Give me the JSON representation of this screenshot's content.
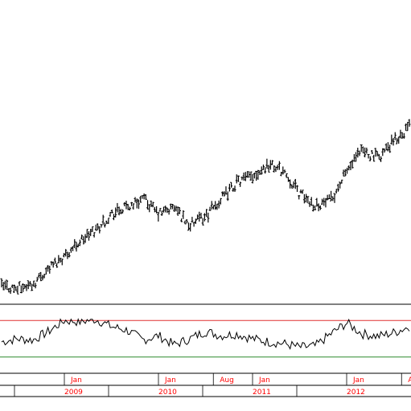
{
  "chart_data": [
    {
      "type": "ohlc",
      "title": "",
      "xlabel": "",
      "ylabel": "",
      "x_start": "2008-05",
      "x_end": "2012-09",
      "points": 230,
      "grid": false,
      "legend": "none",
      "bar_color": "#000000",
      "price_path": [
        {
          "t": "2008-05",
          "v": 8
        },
        {
          "t": "2008-07",
          "v": 6
        },
        {
          "t": "2008-09",
          "v": 10
        },
        {
          "t": "2008-11",
          "v": 24
        },
        {
          "t": "2009-01",
          "v": 35
        },
        {
          "t": "2009-03",
          "v": 48
        },
        {
          "t": "2009-05",
          "v": 58
        },
        {
          "t": "2009-07",
          "v": 72
        },
        {
          "t": "2009-09",
          "v": 78
        },
        {
          "t": "2009-11",
          "v": 86
        },
        {
          "t": "2010-01",
          "v": 72
        },
        {
          "t": "2010-03",
          "v": 78
        },
        {
          "t": "2010-05",
          "v": 62
        },
        {
          "t": "2010-07",
          "v": 70
        },
        {
          "t": "2010-09",
          "v": 85
        },
        {
          "t": "2010-11",
          "v": 100
        },
        {
          "t": "2011-01",
          "v": 106
        },
        {
          "t": "2011-03",
          "v": 116
        },
        {
          "t": "2011-05",
          "v": 110
        },
        {
          "t": "2011-07",
          "v": 90
        },
        {
          "t": "2011-09",
          "v": 80
        },
        {
          "t": "2011-11",
          "v": 84
        },
        {
          "t": "2012-01",
          "v": 110
        },
        {
          "t": "2012-03",
          "v": 128
        },
        {
          "t": "2012-05",
          "v": 122
        },
        {
          "t": "2012-07",
          "v": 136
        },
        {
          "t": "2012-09",
          "v": 150
        }
      ]
    },
    {
      "type": "line",
      "title": "",
      "xlabel": "",
      "ylabel": "",
      "ylim": [
        0,
        100
      ],
      "upper_level": 80,
      "lower_level": 20,
      "upper_color": "#e03030",
      "lower_color": "#2c8a2c",
      "line_color": "#000000",
      "oscillator_path": [
        {
          "t": "2008-05",
          "v": 45
        },
        {
          "t": "2008-07",
          "v": 50
        },
        {
          "t": "2008-09",
          "v": 48
        },
        {
          "t": "2008-11",
          "v": 62
        },
        {
          "t": "2009-01",
          "v": 80
        },
        {
          "t": "2009-03",
          "v": 78
        },
        {
          "t": "2009-05",
          "v": 82
        },
        {
          "t": "2009-07",
          "v": 70
        },
        {
          "t": "2009-09",
          "v": 64
        },
        {
          "t": "2009-11",
          "v": 48
        },
        {
          "t": "2010-01",
          "v": 55
        },
        {
          "t": "2010-03",
          "v": 40
        },
        {
          "t": "2010-05",
          "v": 50
        },
        {
          "t": "2010-07",
          "v": 62
        },
        {
          "t": "2010-09",
          "v": 55
        },
        {
          "t": "2010-11",
          "v": 58
        },
        {
          "t": "2011-01",
          "v": 50
        },
        {
          "t": "2011-03",
          "v": 45
        },
        {
          "t": "2011-05",
          "v": 42
        },
        {
          "t": "2011-07",
          "v": 36
        },
        {
          "t": "2011-09",
          "v": 38
        },
        {
          "t": "2011-11",
          "v": 58
        },
        {
          "t": "2012-01",
          "v": 76
        },
        {
          "t": "2012-03",
          "v": 58
        },
        {
          "t": "2012-05",
          "v": 54
        },
        {
          "t": "2012-07",
          "v": 60
        },
        {
          "t": "2012-09",
          "v": 70
        }
      ]
    }
  ],
  "axis": {
    "months": [
      {
        "label": "Jan",
        "t": "2009-01"
      },
      {
        "label": "Jan",
        "t": "2010-01"
      },
      {
        "label": "Aug",
        "t": "2010-08"
      },
      {
        "label": "Jan",
        "t": "2011-01"
      },
      {
        "label": "Jan",
        "t": "2012-01"
      },
      {
        "label": "Au",
        "t": "2012-08"
      }
    ],
    "years": [
      {
        "label": "2009",
        "t": "2009-01"
      },
      {
        "label": "2010",
        "t": "2010-01"
      },
      {
        "label": "2011",
        "t": "2011-01"
      },
      {
        "label": "2012",
        "t": "2012-01"
      }
    ],
    "month_color": "#ff0000",
    "year_color": "#ff0000"
  }
}
